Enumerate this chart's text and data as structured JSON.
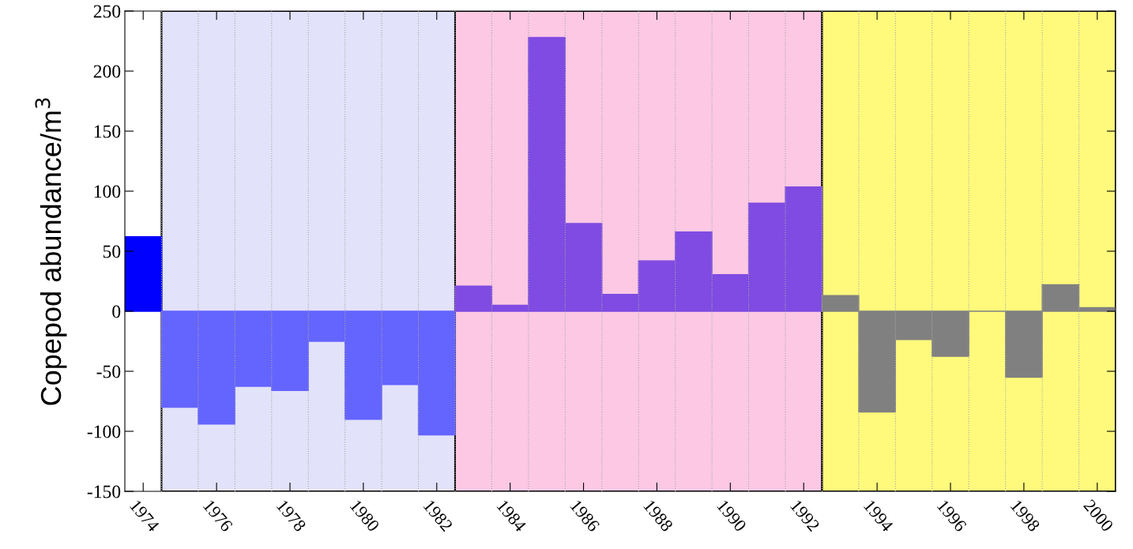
{
  "chart_data": {
    "type": "bar",
    "ylabel": "Copepod abundance/m$^{3}$",
    "x": [
      1974,
      1975,
      1976,
      1977,
      1978,
      1979,
      1980,
      1981,
      1982,
      1983,
      1984,
      1985,
      1986,
      1987,
      1988,
      1989,
      1990,
      1991,
      1992,
      1993,
      1994,
      1995,
      1996,
      1997,
      1998,
      1999,
      2000
    ],
    "values": [
      62,
      -80,
      -94,
      -62.5,
      -66,
      -25,
      -90,
      -61,
      -103,
      21,
      5,
      228,
      73,
      14,
      42,
      66,
      30.5,
      90,
      103.5,
      13,
      -84,
      -23.5,
      -37.5,
      0,
      -55,
      22,
      3
    ],
    "colors": [
      "#0000ff",
      "#6464ff",
      "#6464ff",
      "#6464ff",
      "#6464ff",
      "#6464ff",
      "#6464ff",
      "#6464ff",
      "#6464ff",
      "#7f4be2",
      "#7f4be2",
      "#7f4be2",
      "#7f4be2",
      "#7f4be2",
      "#7f4be2",
      "#7f4be2",
      "#7f4be2",
      "#7f4be2",
      "#7f4be2",
      "#808080",
      "#808080",
      "#808080",
      "#808080",
      "#808080",
      "#808080",
      "#808080",
      "#808080"
    ],
    "xlim": [
      1973.5,
      2000.5
    ],
    "xticks": [
      1974,
      1976,
      1978,
      1980,
      1982,
      1984,
      1986,
      1988,
      1990,
      1992,
      1994,
      1996,
      1998,
      2000
    ],
    "ylim": [
      -150,
      250
    ],
    "yticks": [
      -150,
      -100,
      -50,
      0,
      50,
      100,
      150,
      200,
      250
    ],
    "bands": [
      {
        "axis": "x",
        "from": 1974.5,
        "to": 1982.5,
        "color": "#e2e2fa"
      },
      {
        "axis": "x",
        "from": 1982.5,
        "to": 1992.5,
        "color": "#fcc8e4"
      },
      {
        "axis": "x",
        "from": 1992.5,
        "to": 2000.5,
        "color": "#fffa7c"
      }
    ],
    "grid": "x"
  }
}
